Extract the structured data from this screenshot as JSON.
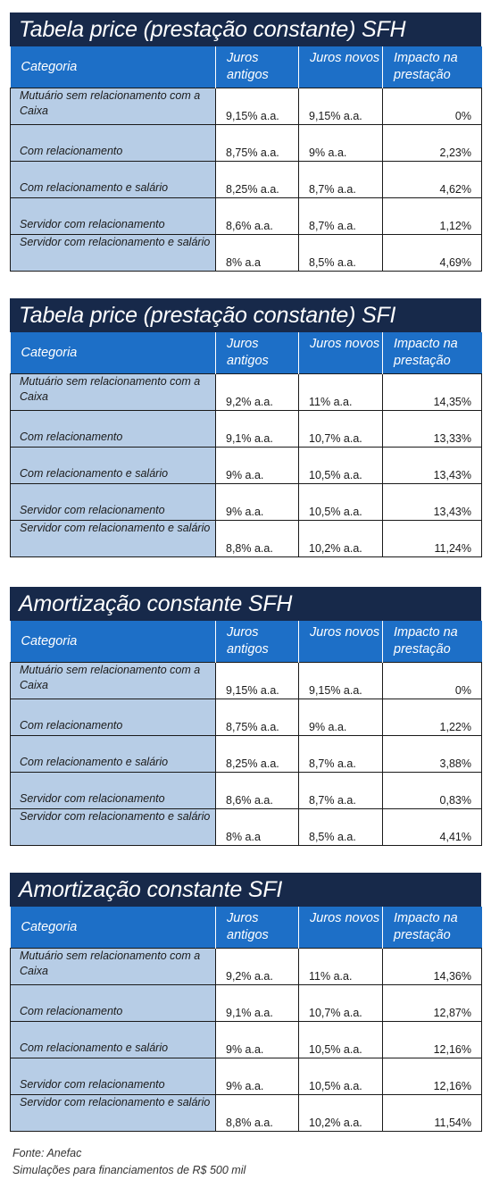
{
  "tables": [
    {
      "title": "Tabela price (prestação constante) SFH",
      "headers": [
        "Categoria",
        "Juros antigos",
        "Juros novos",
        "Impacto na prestação"
      ],
      "rows": [
        [
          "Mutuário sem relacionamento com a Caixa",
          "9,15% a.a.",
          "9,15% a.a.",
          "0%"
        ],
        [
          "Com relacionamento",
          "8,75% a.a.",
          "9% a.a.",
          "2,23%"
        ],
        [
          "Com relacionamento e salário",
          "8,25% a.a.",
          "8,7% a.a.",
          "4,62%"
        ],
        [
          "Servidor com relacionamento",
          "8,6% a.a.",
          "8,7% a.a.",
          "1,12%"
        ],
        [
          "Servidor com relacionamento e salário",
          "8% a.a",
          "8,5% a.a.",
          "4,69%"
        ]
      ]
    },
    {
      "title": "Tabela price (prestação constante) SFI",
      "headers": [
        "Categoria",
        "Juros antigos",
        "Juros novos",
        "Impacto na prestação"
      ],
      "rows": [
        [
          "Mutuário sem relacionamento com a Caixa",
          "9,2% a.a.",
          "11% a.a.",
          "14,35%"
        ],
        [
          "Com relacionamento",
          "9,1% a.a.",
          "10,7% a.a.",
          "13,33%"
        ],
        [
          "Com relacionamento e salário",
          "9% a.a.",
          "10,5% a.a.",
          "13,43%"
        ],
        [
          "Servidor com relacionamento",
          "9% a.a.",
          "10,5% a.a.",
          "13,43%"
        ],
        [
          "Servidor com relacionamento e salário",
          "8,8% a.a.",
          "10,2% a.a.",
          "11,24%"
        ]
      ]
    },
    {
      "title": "Amortização constante SFH",
      "headers": [
        "Categoria",
        "Juros antigos",
        "Juros novos",
        "Impacto na prestação"
      ],
      "rows": [
        [
          "Mutuário sem relacionamento com a Caixa",
          "9,15% a.a.",
          "9,15% a.a.",
          "0%"
        ],
        [
          "Com relacionamento",
          "8,75% a.a.",
          "9% a.a.",
          "1,22%"
        ],
        [
          "Com relacionamento e salário",
          "8,25% a.a.",
          "8,7% a.a.",
          "3,88%"
        ],
        [
          "Servidor com relacionamento",
          "8,6% a.a.",
          "8,7% a.a.",
          "0,83%"
        ],
        [
          "Servidor com relacionamento e salário",
          "8% a.a",
          "8,5% a.a.",
          "4,41%"
        ]
      ]
    },
    {
      "title": "Amortização constante SFI",
      "headers": [
        "Categoria",
        "Juros antigos",
        "Juros novos",
        "Impacto na prestação"
      ],
      "rows": [
        [
          "Mutuário sem relacionamento com a Caixa",
          "9,2% a.a.",
          "11% a.a.",
          "14,36%"
        ],
        [
          "Com relacionamento",
          "9,1% a.a.",
          "10,7% a.a.",
          "12,87%"
        ],
        [
          "Com relacionamento e salário",
          "9% a.a.",
          "10,5% a.a.",
          "12,16%"
        ],
        [
          "Servidor com relacionamento",
          "9% a.a.",
          "10,5% a.a.",
          "12,16%"
        ],
        [
          "Servidor com relacionamento e salário",
          "8,8% a.a.",
          "10,2% a.a.",
          "11,54%"
        ]
      ]
    }
  ],
  "footer": {
    "source": "Fonte: Anefac",
    "note": "Simulações para financiamentos de R$ 500 mil"
  },
  "colors": {
    "title_bar": "#17294a",
    "header_row": "#1d6fc7",
    "category_cell": "#b7cde6"
  }
}
